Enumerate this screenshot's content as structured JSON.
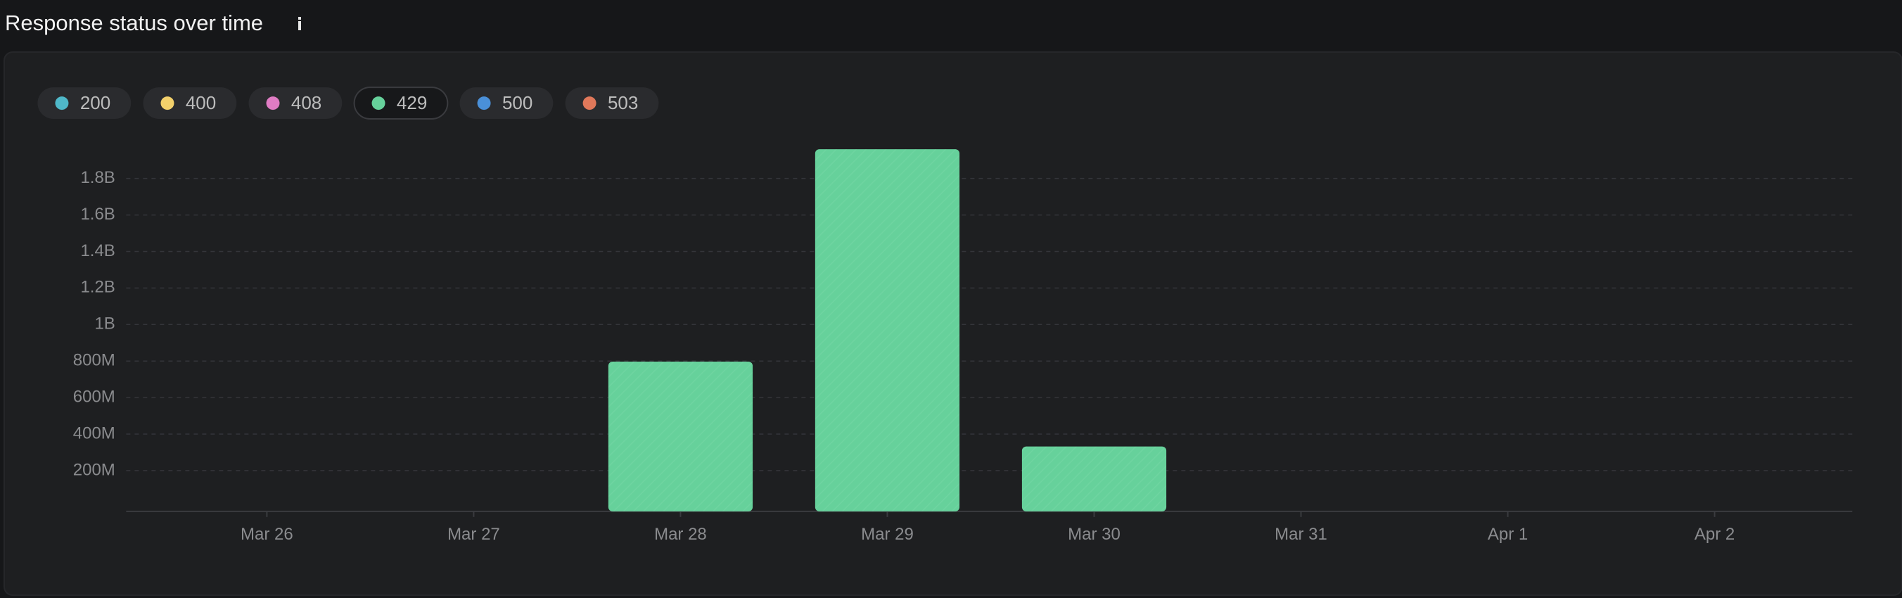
{
  "chart_data": {
    "type": "bar",
    "stacked": true,
    "title": "Response status over time",
    "categories": [
      "Mar 26",
      "Mar 27",
      "Mar 28",
      "Mar 29",
      "Mar 30",
      "Mar 31",
      "Apr 1",
      "Apr 2"
    ],
    "series": [
      {
        "name": "200",
        "color": "#4fb8c9",
        "values": [
          0,
          0,
          0,
          0,
          0,
          0,
          0,
          0
        ]
      },
      {
        "name": "400",
        "color": "#f2d06b",
        "values": [
          0,
          0,
          0,
          0,
          0,
          0,
          0,
          0
        ]
      },
      {
        "name": "408",
        "color": "#e07cc4",
        "values": [
          0,
          0,
          0,
          0,
          0,
          0,
          0,
          0
        ]
      },
      {
        "name": "429",
        "color": "#66d19b",
        "values": [
          0,
          0,
          797000000,
          1960000000,
          332000000,
          0,
          0,
          0
        ]
      },
      {
        "name": "500",
        "color": "#4a90d9",
        "values": [
          0,
          0,
          0,
          0,
          0,
          0,
          0,
          0
        ]
      },
      {
        "name": "503",
        "color": "#e0785a",
        "values": [
          0,
          0,
          0,
          0,
          0,
          0,
          0,
          0
        ]
      }
    ],
    "highlighted_series": "429",
    "ylim": [
      0,
      2000000000
    ],
    "yticks": [
      {
        "value": 200000000,
        "label": "200M"
      },
      {
        "value": 400000000,
        "label": "400M"
      },
      {
        "value": 600000000,
        "label": "600M"
      },
      {
        "value": 800000000,
        "label": "800M"
      },
      {
        "value": 1000000000,
        "label": "1B"
      },
      {
        "value": 1200000000,
        "label": "1.2B"
      },
      {
        "value": 1400000000,
        "label": "1.4B"
      },
      {
        "value": 1600000000,
        "label": "1.6B"
      },
      {
        "value": 1800000000,
        "label": "1.8B"
      }
    ],
    "grid": true
  }
}
